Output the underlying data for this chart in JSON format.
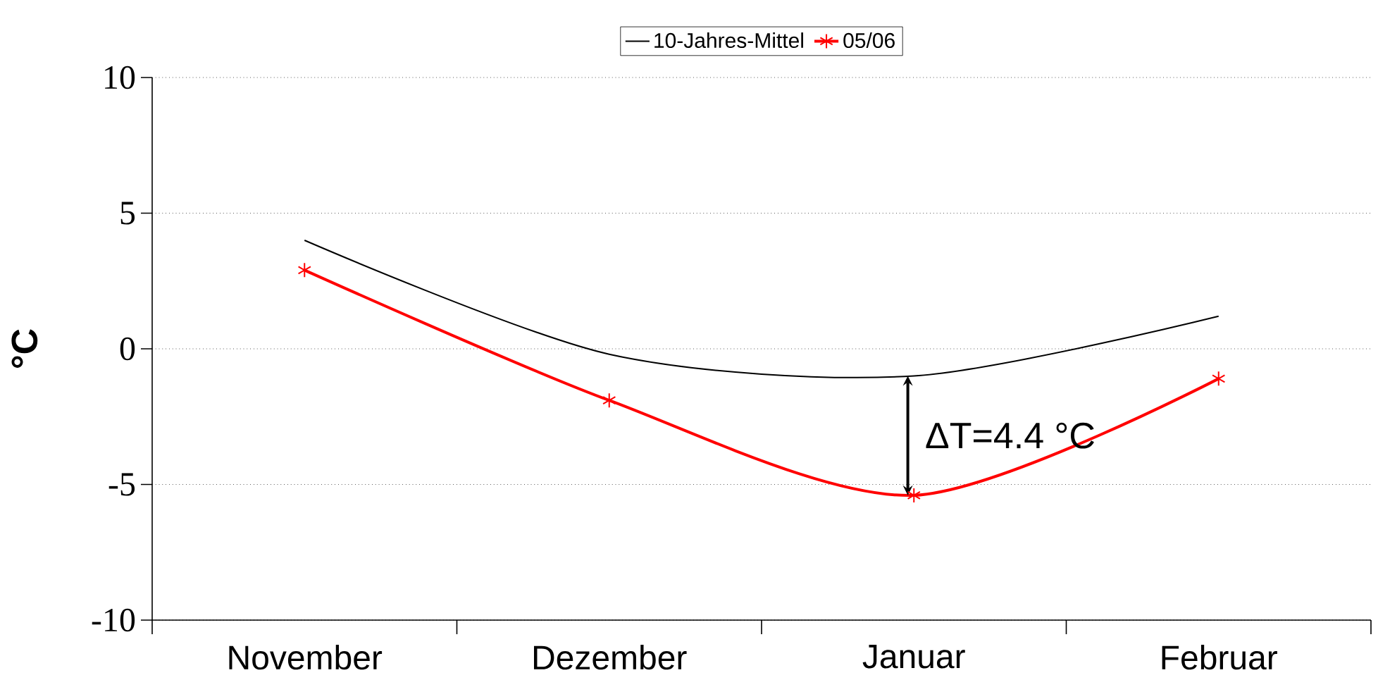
{
  "chart_data": {
    "type": "line",
    "ylabel": "°C",
    "categories": [
      "November",
      "Dezember",
      "Januar",
      "Februar"
    ],
    "series": [
      {
        "name": "10-Jahres-Mittel",
        "color": "#000000",
        "values": [
          4.0,
          -0.2,
          -1.0,
          1.2
        ],
        "marker": "none"
      },
      {
        "name": "05/06",
        "color": "#ff0000",
        "values": [
          2.9,
          -1.9,
          -5.4,
          -1.1
        ],
        "marker": "cross"
      }
    ],
    "ylim": [
      -10,
      10
    ],
    "yticks": [
      -10,
      -5,
      0,
      5,
      10
    ],
    "grid": "y",
    "legend": "top",
    "annotations": [
      "ΔT=4.4 °C"
    ]
  }
}
